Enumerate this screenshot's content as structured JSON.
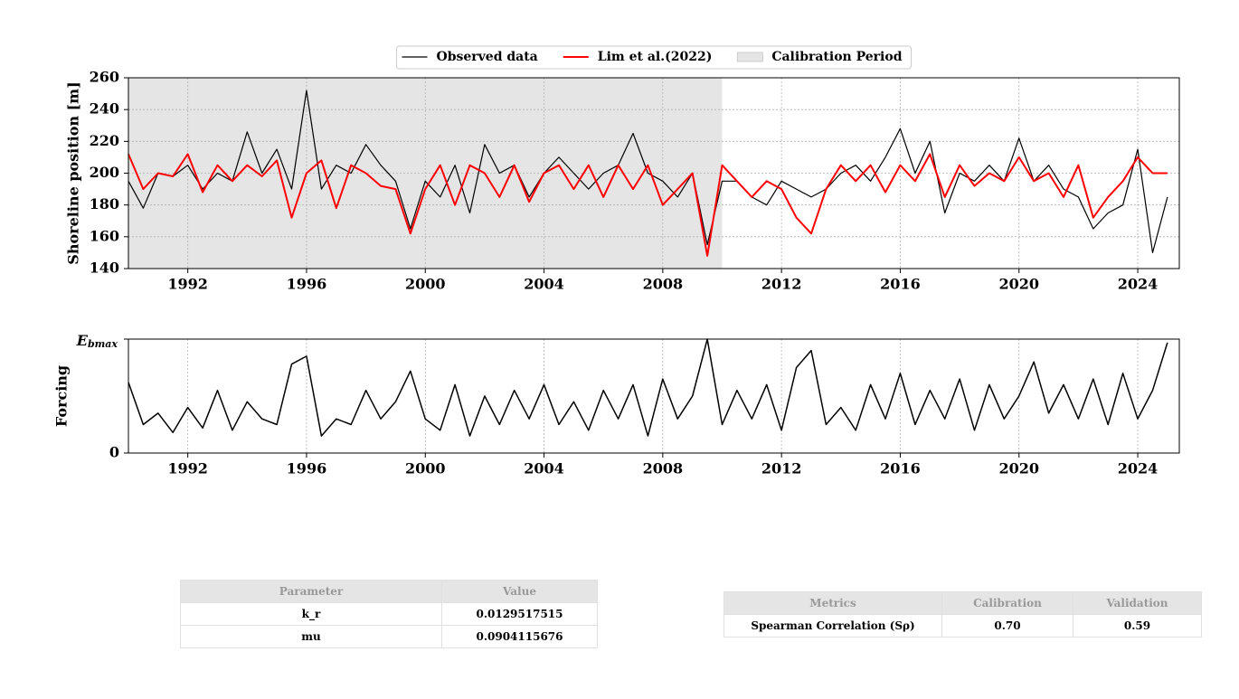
{
  "chart_data": [
    {
      "type": "line",
      "ylabel": "Shoreline position [m]",
      "x": [
        1990,
        1990.5,
        1991,
        1991.5,
        1992,
        1992.5,
        1993,
        1993.5,
        1994,
        1994.5,
        1995,
        1995.5,
        1996,
        1996.5,
        1997,
        1997.5,
        1998,
        1998.5,
        1999,
        1999.5,
        2000,
        2000.5,
        2001,
        2001.5,
        2002,
        2002.5,
        2003,
        2003.5,
        2004,
        2004.5,
        2005,
        2005.5,
        2006,
        2006.5,
        2007,
        2007.5,
        2008,
        2008.5,
        2009,
        2009.5,
        2010,
        2010.5,
        2011,
        2011.5,
        2012,
        2012.5,
        2013,
        2013.5,
        2014,
        2014.5,
        2015,
        2015.5,
        2016,
        2016.5,
        2017,
        2017.5,
        2018,
        2018.5,
        2019,
        2019.5,
        2020,
        2020.5,
        2021,
        2021.5,
        2022,
        2022.5,
        2023,
        2023.5,
        2024,
        2024.5,
        2025
      ],
      "series": [
        {
          "name": "Observed data",
          "color": "#000000",
          "width": 1.2,
          "values": [
            195,
            178,
            200,
            198,
            205,
            190,
            200,
            195,
            226,
            200,
            215,
            190,
            252,
            190,
            205,
            200,
            218,
            205,
            195,
            165,
            195,
            185,
            205,
            175,
            218,
            200,
            205,
            185,
            200,
            210,
            200,
            190,
            200,
            205,
            225,
            200,
            195,
            185,
            200,
            155,
            195,
            195,
            185,
            180,
            195,
            190,
            185,
            190,
            200,
            205,
            195,
            210,
            228,
            200,
            220,
            175,
            200,
            195,
            205,
            195,
            222,
            195,
            205,
            190,
            185,
            165,
            175,
            180,
            215,
            150,
            185
          ]
        },
        {
          "name": "Lim et al.(2022)",
          "color": "#ff0000",
          "width": 2,
          "values": [
            212,
            190,
            200,
            198,
            212,
            188,
            205,
            195,
            205,
            198,
            208,
            172,
            200,
            208,
            178,
            205,
            200,
            192,
            190,
            162,
            190,
            205,
            180,
            205,
            200,
            185,
            205,
            182,
            200,
            205,
            190,
            205,
            185,
            205,
            190,
            205,
            180,
            190,
            200,
            148,
            205,
            195,
            185,
            195,
            190,
            172,
            162,
            190,
            205,
            195,
            205,
            188,
            205,
            195,
            212,
            185,
            205,
            192,
            200,
            195,
            210,
            195,
            200,
            185,
            205,
            172,
            185,
            195,
            210,
            200,
            200
          ]
        }
      ],
      "spans": [
        {
          "name": "Calibration Period",
          "x": [
            1990,
            2010
          ],
          "color": "#e5e5e5"
        }
      ],
      "xlim": [
        1990,
        2025.4
      ],
      "xticks": [
        1992,
        1996,
        2000,
        2004,
        2008,
        2012,
        2016,
        2020,
        2024
      ],
      "ylim": [
        140,
        260
      ],
      "yticks": [
        140,
        160,
        180,
        200,
        220,
        240,
        260
      ],
      "grid": "both",
      "legend": "upper center"
    },
    {
      "type": "line",
      "ylabel": "Forcing",
      "x": [
        1990,
        1990.5,
        1991,
        1991.5,
        1992,
        1992.5,
        1993,
        1993.5,
        1994,
        1994.5,
        1995,
        1995.5,
        1996,
        1996.5,
        1997,
        1997.5,
        1998,
        1998.5,
        1999,
        1999.5,
        2000,
        2000.5,
        2001,
        2001.5,
        2002,
        2002.5,
        2003,
        2003.5,
        2004,
        2004.5,
        2005,
        2005.5,
        2006,
        2006.5,
        2007,
        2007.5,
        2008,
        2008.5,
        2009,
        2009.5,
        2010,
        2010.5,
        2011,
        2011.5,
        2012,
        2012.5,
        2013,
        2013.5,
        2014,
        2014.5,
        2015,
        2015.5,
        2016,
        2016.5,
        2017,
        2017.5,
        2018,
        2018.5,
        2019,
        2019.5,
        2020,
        2020.5,
        2021,
        2021.5,
        2022,
        2022.5,
        2023,
        2023.5,
        2024,
        2024.5,
        2025
      ],
      "series": [
        {
          "color": "#000000",
          "width": 1.5,
          "values": [
            0.62,
            0.25,
            0.35,
            0.18,
            0.4,
            0.22,
            0.55,
            0.2,
            0.45,
            0.3,
            0.25,
            0.78,
            0.85,
            0.15,
            0.3,
            0.25,
            0.55,
            0.3,
            0.45,
            0.72,
            0.3,
            0.2,
            0.6,
            0.15,
            0.5,
            0.25,
            0.55,
            0.3,
            0.6,
            0.25,
            0.45,
            0.2,
            0.55,
            0.3,
            0.6,
            0.15,
            0.65,
            0.3,
            0.5,
            1.0,
            0.25,
            0.55,
            0.3,
            0.6,
            0.2,
            0.75,
            0.9,
            0.25,
            0.4,
            0.2,
            0.6,
            0.3,
            0.7,
            0.25,
            0.55,
            0.3,
            0.65,
            0.2,
            0.6,
            0.3,
            0.5,
            0.8,
            0.35,
            0.6,
            0.3,
            0.65,
            0.25,
            0.7,
            0.3,
            0.55,
            0.97
          ]
        }
      ],
      "xlim": [
        1990,
        2025.4
      ],
      "xticks": [
        1992,
        1996,
        2000,
        2004,
        2008,
        2012,
        2016,
        2020,
        2024
      ],
      "ylim": [
        0,
        1
      ],
      "yticks": [
        0,
        {
          "value": 1,
          "label": "Ebmax"
        }
      ],
      "grid": "x"
    }
  ],
  "tables": [
    {
      "header": [
        "Parameter",
        "Value"
      ],
      "rows": [
        [
          "k_r",
          "0.0129517515"
        ],
        [
          "mu",
          "0.0904115676"
        ]
      ]
    },
    {
      "header": [
        "Metrics",
        "Calibration",
        "Validation"
      ],
      "rows": [
        [
          "Spearman Correlation (Sρ)",
          "0.70",
          "0.59"
        ]
      ]
    }
  ]
}
